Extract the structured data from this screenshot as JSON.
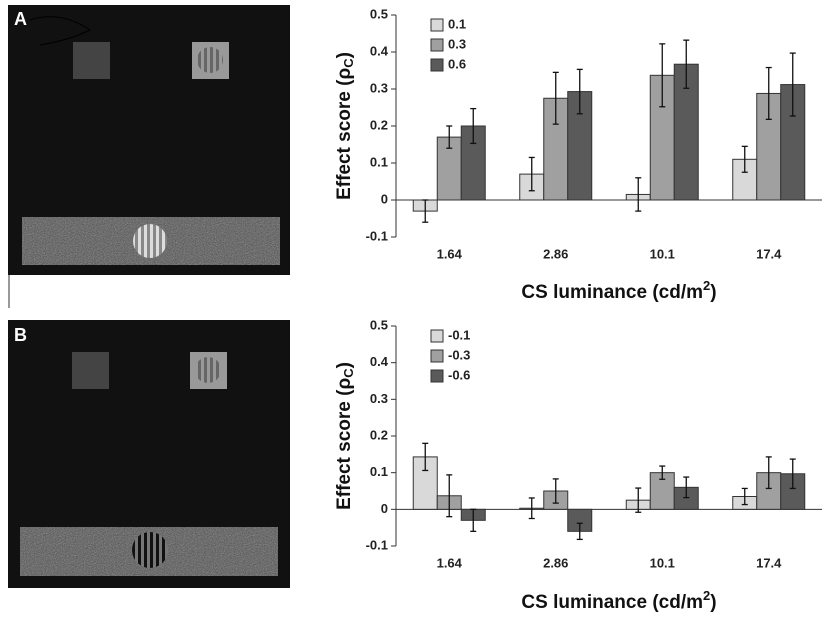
{
  "chart_data": [
    {
      "type": "bar",
      "panel_label": "A",
      "categories": [
        "1.64",
        "2.86",
        "10.1",
        "17.4"
      ],
      "series": [
        {
          "name": "0.1",
          "color": "#d9d9d9",
          "values": [
            -0.03,
            0.07,
            0.015,
            0.11
          ],
          "errors": [
            0.03,
            0.045,
            0.045,
            0.035
          ]
        },
        {
          "name": "0.3",
          "color": "#a0a0a0",
          "values": [
            0.17,
            0.275,
            0.337,
            0.288
          ],
          "errors": [
            0.03,
            0.07,
            0.085,
            0.07
          ]
        },
        {
          "name": "0.6",
          "color": "#5a5a5a",
          "values": [
            0.2,
            0.293,
            0.367,
            0.312
          ],
          "errors": [
            0.047,
            0.06,
            0.065,
            0.085
          ]
        }
      ],
      "ylim": [
        -0.1,
        0.5
      ],
      "yticks": [
        -0.1,
        0,
        0.1,
        0.2,
        0.3,
        0.4,
        0.5
      ],
      "legend": "upper left",
      "y_label": [
        "Effect score  (ρ",
        "C",
        ")"
      ],
      "x_label": [
        "CS luminance (cd/m",
        "2",
        ")"
      ]
    },
    {
      "type": "bar",
      "panel_label": "B",
      "categories": [
        "1.64",
        "2.86",
        "10.1",
        "17.4"
      ],
      "series": [
        {
          "name": "-0.1",
          "color": "#d9d9d9",
          "values": [
            0.143,
            0.003,
            0.025,
            0.035
          ],
          "errors": [
            0.037,
            0.028,
            0.033,
            0.022
          ]
        },
        {
          "name": "-0.3",
          "color": "#a0a0a0",
          "values": [
            0.037,
            0.05,
            0.1,
            0.1
          ],
          "errors": [
            0.057,
            0.033,
            0.018,
            0.043
          ]
        },
        {
          "name": "-0.6",
          "color": "#5a5a5a",
          "values": [
            -0.03,
            -0.06,
            0.06,
            0.097
          ],
          "errors": [
            0.03,
            0.022,
            0.028,
            0.04
          ]
        }
      ],
      "ylim": [
        -0.1,
        0.5
      ],
      "yticks": [
        -0.1,
        0,
        0.1,
        0.2,
        0.3,
        0.4,
        0.5
      ],
      "legend": "upper left",
      "y_label": [
        "Effect score  (ρ",
        "C",
        ")"
      ],
      "x_label": [
        "CS luminance (cd/m",
        "2",
        ")"
      ]
    }
  ]
}
